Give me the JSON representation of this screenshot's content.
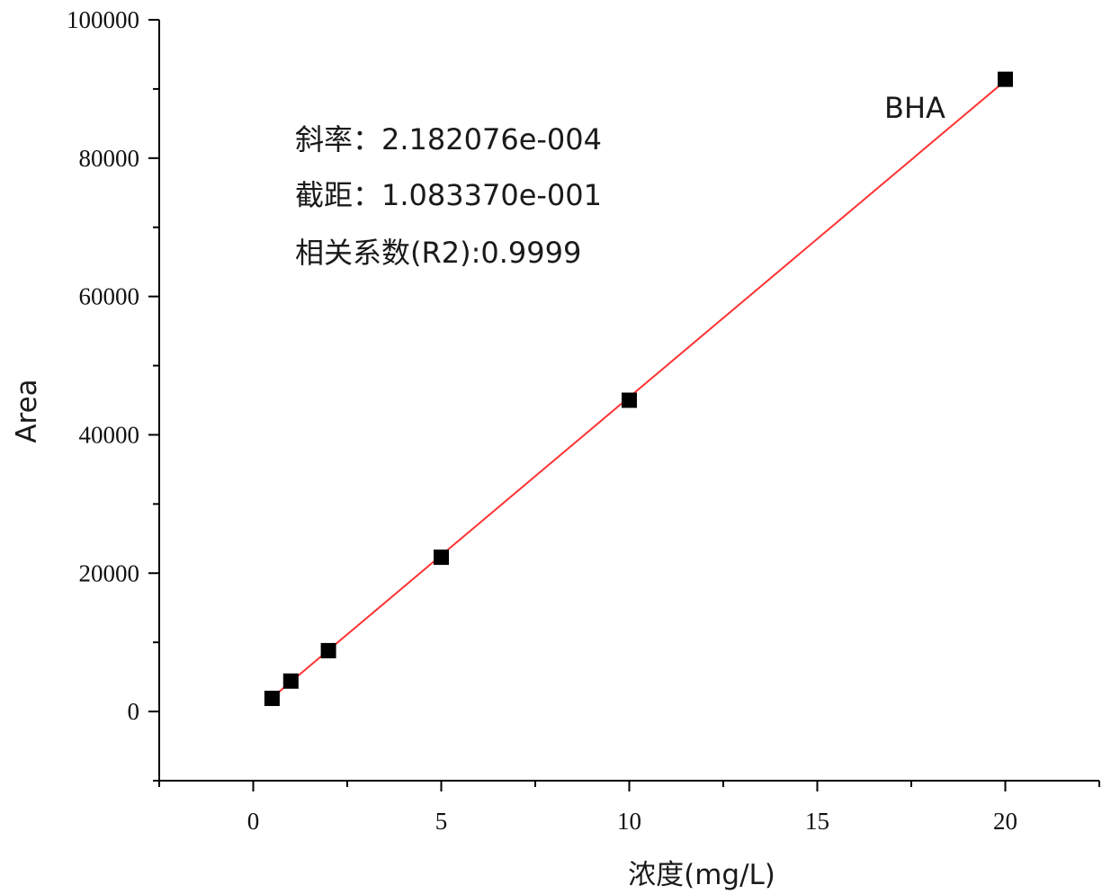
{
  "chart_data": {
    "type": "scatter",
    "xlabel": "浓度(mg/L)",
    "ylabel": "Area",
    "xlim": [
      -2.5,
      22.5
    ],
    "ylim": [
      -10000,
      100000
    ],
    "x_ticks": [
      0,
      5,
      10,
      15,
      20
    ],
    "y_ticks": [
      0,
      20000,
      40000,
      60000,
      80000,
      100000
    ],
    "grid": false,
    "series": [
      {
        "name": "BHA",
        "color": "#000000",
        "marker": "square",
        "points": [
          {
            "x": 0.5,
            "y": 1900
          },
          {
            "x": 1,
            "y": 4400
          },
          {
            "x": 2,
            "y": 8800
          },
          {
            "x": 5,
            "y": 22300
          },
          {
            "x": 10,
            "y": 45000
          },
          {
            "x": 20,
            "y": 91400
          }
        ]
      }
    ],
    "fit_line": {
      "color": "#ff3333",
      "x": [
        0.5,
        20
      ],
      "y": [
        2000,
        91200
      ]
    },
    "annotations": {
      "slope": "斜率：2.182076e-004",
      "intercept": "截距：1.083370e-001",
      "r2": "相关系数(R2):0.9999",
      "series_label": "BHA",
      "series_label_color": "#a8323a"
    }
  }
}
